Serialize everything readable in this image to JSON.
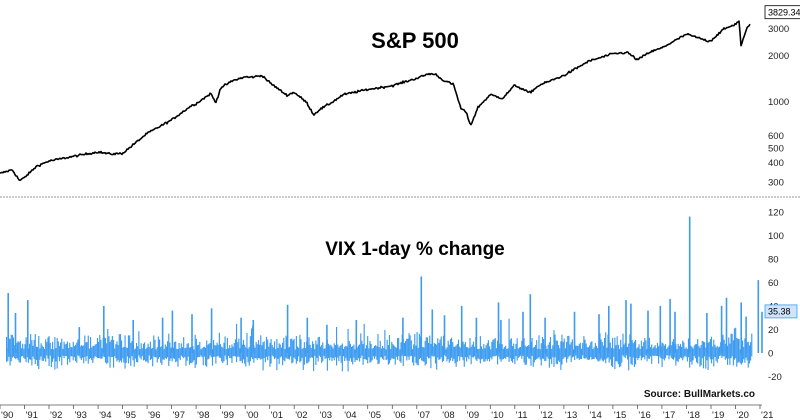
{
  "colors": {
    "sp500_line": "#000000",
    "vix_bars": "#3d9bf0",
    "sp_last_box_bg": "#ffffff",
    "vix_last_box_bg": "#cfe3fb",
    "divider": "#999999"
  },
  "x_axis": {
    "ticks": [
      "'90",
      "'91",
      "'92",
      "'93",
      "'94",
      "'95",
      "'96",
      "'97",
      "'98",
      "'99",
      "'00",
      "'01",
      "'02",
      "'03",
      "'04",
      "'05",
      "'06",
      "'07",
      "'08",
      "'09",
      "'10",
      "'11",
      "'12",
      "'13",
      "'14",
      "'15",
      "'16",
      "'17",
      "'18",
      "'19",
      "'20",
      "'21"
    ],
    "range": [
      1990,
      2021
    ]
  },
  "chart_data": [
    {
      "type": "line",
      "title": "S&P 500",
      "scale": "log",
      "ylim": [
        250,
        4200
      ],
      "yticks": [
        300,
        400,
        500,
        600,
        1000,
        2000,
        3000
      ],
      "last_value_label": "3829.34",
      "series": [
        {
          "x": [
            1990.0,
            1990.5,
            1990.8,
            1991.0,
            1991.5,
            1992.0,
            1993.0,
            1994.0,
            1994.5,
            1995.0,
            1996.0,
            1997.0,
            1997.8,
            1998.0,
            1998.6,
            1998.8,
            1999.0,
            1999.5,
            2000.0,
            2000.2,
            2000.7,
            2001.0,
            2001.7,
            2002.0,
            2002.5,
            2002.8,
            2003.0,
            2003.5,
            2004.0,
            2005.0,
            2006.0,
            2007.0,
            2007.5,
            2007.8,
            2008.0,
            2008.5,
            2008.8,
            2009.0,
            2009.2,
            2009.5,
            2010.0,
            2010.5,
            2011.0,
            2011.6,
            2012.0,
            2013.0,
            2014.0,
            2015.0,
            2015.6,
            2016.0,
            2016.5,
            2017.0,
            2018.0,
            2018.2,
            2018.9,
            2019.0,
            2019.5,
            2020.0,
            2020.15,
            2020.22,
            2020.5,
            2021.0,
            2021.1
          ],
          "y": [
            340,
            360,
            305,
            320,
            380,
            410,
            440,
            470,
            455,
            460,
            620,
            760,
            940,
            970,
            1130,
            980,
            1230,
            1370,
            1450,
            1440,
            1480,
            1330,
            1100,
            1150,
            990,
            820,
            880,
            980,
            1110,
            1200,
            1270,
            1420,
            1520,
            1500,
            1400,
            1290,
            900,
            860,
            700,
            920,
            1110,
            1050,
            1280,
            1140,
            1280,
            1480,
            1830,
            2050,
            2090,
            1870,
            2100,
            2240,
            2750,
            2690,
            2480,
            2500,
            2950,
            3200,
            3380,
            2300,
            3100,
            3750,
            3829
          ]
        }
      ]
    },
    {
      "type": "bar",
      "title": "VIX 1-day % change",
      "ylim": [
        -40,
        125
      ],
      "yticks": [
        -20,
        0,
        20,
        40,
        60,
        80,
        100,
        120
      ],
      "last_value_label": "35.38",
      "source": "Source: BullMarkets.co",
      "series": [
        {
          "spikes_x": [
            1990.3,
            1990.6,
            1991.1,
            1993.2,
            1994.2,
            1995.4,
            1996.6,
            1997.0,
            1997.8,
            1998.6,
            1999.8,
            2000.3,
            2001.7,
            2002.5,
            2003.3,
            2004.5,
            2006.4,
            2007.15,
            2007.6,
            2008.1,
            2008.8,
            2009.4,
            2010.3,
            2010.4,
            2011.3,
            2011.6,
            2012.2,
            2013.4,
            2014.4,
            2014.8,
            2015.5,
            2015.7,
            2016.4,
            2016.9,
            2017.3,
            2017.5,
            2018.1,
            2018.8,
            2019.4,
            2019.6,
            2020.2,
            2020.4,
            2020.9,
            2021.05
          ],
          "spikes_y": [
            51,
            34,
            45,
            22,
            40,
            28,
            30,
            36,
            33,
            38,
            30,
            28,
            41,
            30,
            24,
            28,
            30,
            65,
            37,
            32,
            40,
            30,
            43,
            28,
            35,
            50,
            30,
            35,
            33,
            40,
            45,
            42,
            36,
            40,
            46,
            35,
            116,
            34,
            40,
            47,
            43,
            31,
            62,
            35
          ]
        }
      ]
    }
  ]
}
